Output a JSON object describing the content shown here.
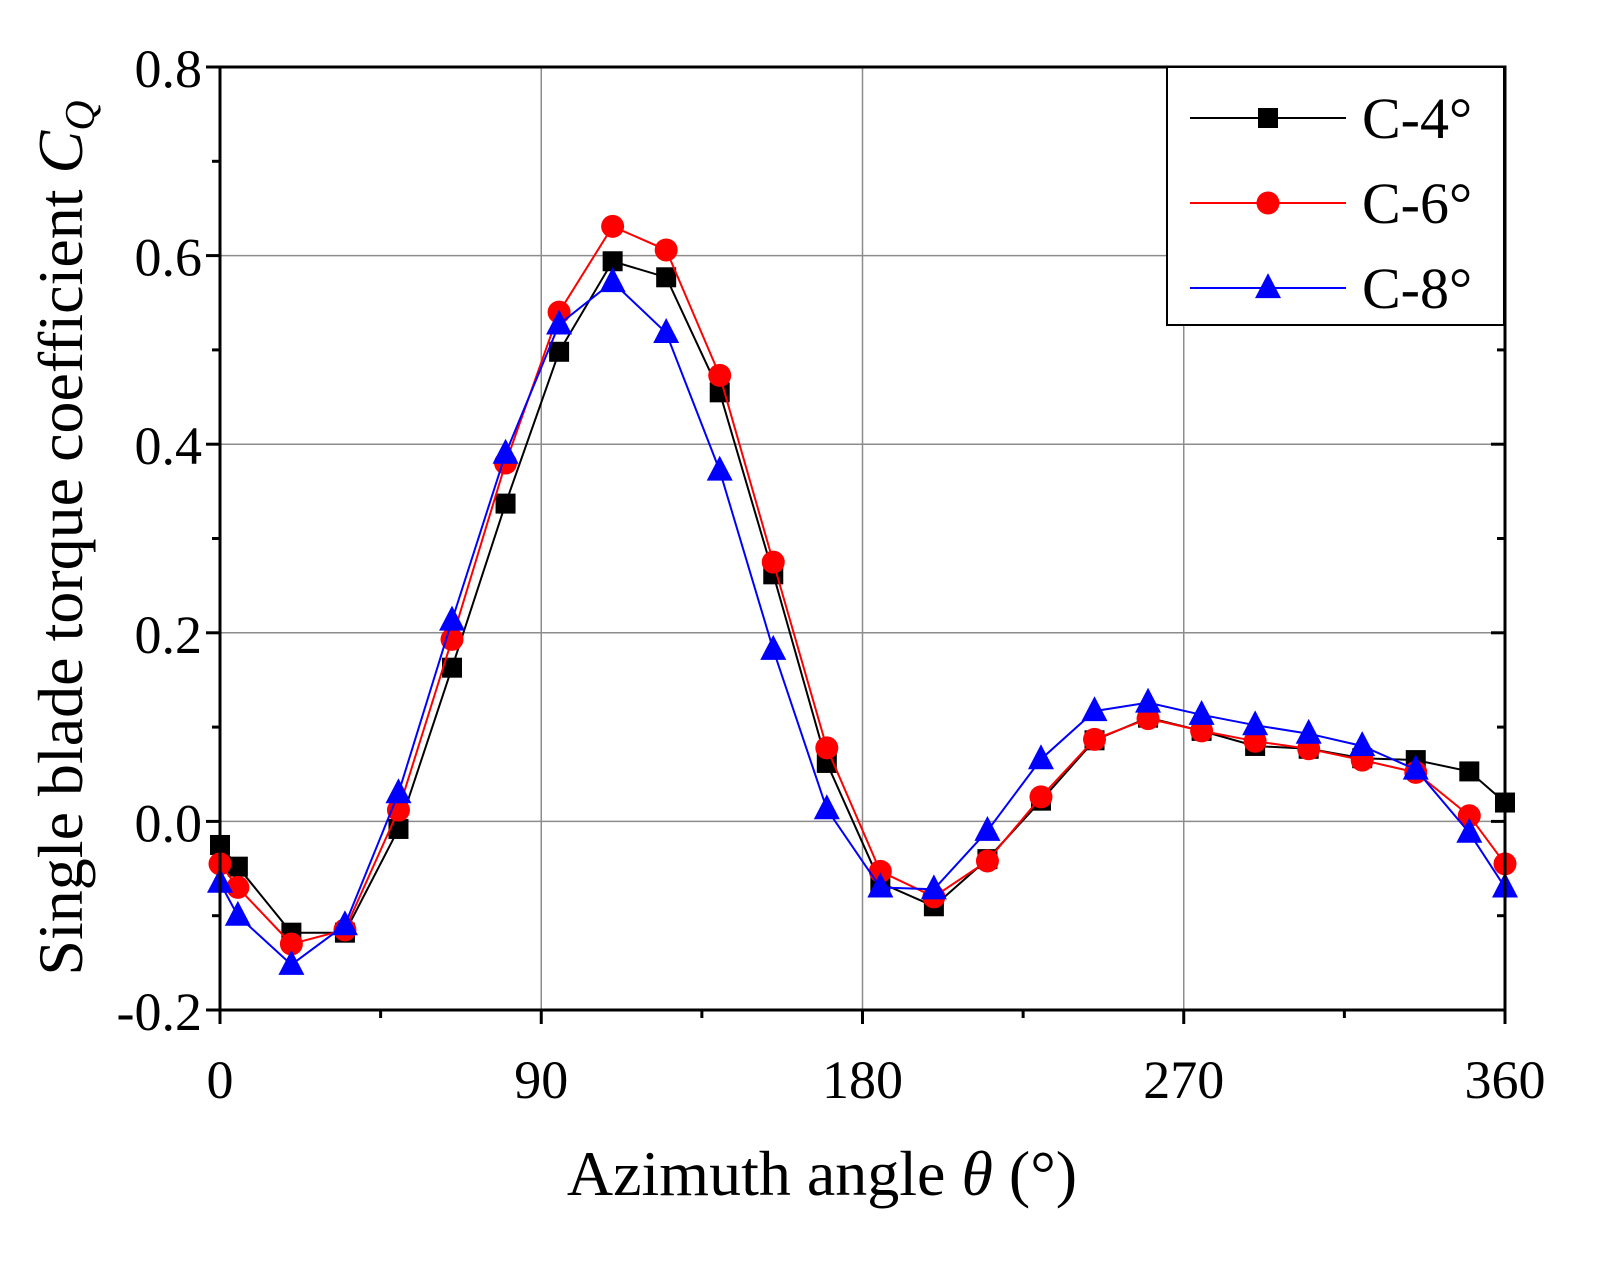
{
  "chart_data": {
    "type": "line",
    "title": "",
    "xlabel": "Azimuth angle θ (°)",
    "xlabel_parts": {
      "text": "Azimuth angle ",
      "symbol": "θ",
      "unit": " (°)"
    },
    "ylabel": "Single blade torque coefficient C_Q",
    "ylabel_parts": {
      "text": "Single blade torque coefficient ",
      "symbol": "C",
      "subscript": "Q"
    },
    "xlim": [
      0,
      360
    ],
    "ylim": [
      -0.2,
      0.8
    ],
    "x_ticks": [
      0,
      90,
      180,
      270,
      360
    ],
    "x_tick_labels": [
      "0",
      "90",
      "180",
      "270",
      "360"
    ],
    "y_ticks": [
      -0.2,
      0.0,
      0.2,
      0.4,
      0.6,
      0.8
    ],
    "y_tick_labels": [
      "-0.2",
      "0.0",
      "0.2",
      "0.4",
      "0.6",
      "0.8"
    ],
    "grid": true,
    "legend_position": "top-right",
    "x": [
      0,
      5,
      20,
      35,
      50,
      65,
      80,
      95,
      110,
      125,
      140,
      155,
      170,
      185,
      200,
      215,
      230,
      245,
      260,
      275,
      290,
      305,
      320,
      335,
      350,
      360
    ],
    "series": [
      {
        "name": "C-4°",
        "color": "#000000",
        "marker": "square",
        "values": [
          -0.025,
          -0.048,
          -0.118,
          -0.118,
          -0.008,
          0.163,
          0.337,
          0.498,
          0.594,
          0.577,
          0.455,
          0.262,
          0.062,
          -0.065,
          -0.09,
          -0.04,
          0.022,
          0.086,
          0.11,
          0.096,
          0.08,
          0.077,
          0.067,
          0.065,
          0.053,
          0.02
        ]
      },
      {
        "name": "C-6°",
        "color": "#ff0000",
        "marker": "circle",
        "values": [
          -0.045,
          -0.07,
          -0.13,
          -0.115,
          0.012,
          0.193,
          0.38,
          0.54,
          0.631,
          0.606,
          0.473,
          0.275,
          0.078,
          -0.053,
          -0.08,
          -0.042,
          0.026,
          0.087,
          0.109,
          0.096,
          0.085,
          0.077,
          0.065,
          0.052,
          0.006,
          -0.045
        ]
      },
      {
        "name": "C-8°",
        "color": "#0000ff",
        "marker": "triangle",
        "values": [
          -0.065,
          -0.1,
          -0.152,
          -0.11,
          0.03,
          0.213,
          0.39,
          0.527,
          0.572,
          0.518,
          0.372,
          0.182,
          0.013,
          -0.07,
          -0.072,
          -0.01,
          0.066,
          0.117,
          0.126,
          0.113,
          0.102,
          0.093,
          0.08,
          0.055,
          -0.012,
          -0.07
        ]
      }
    ]
  }
}
